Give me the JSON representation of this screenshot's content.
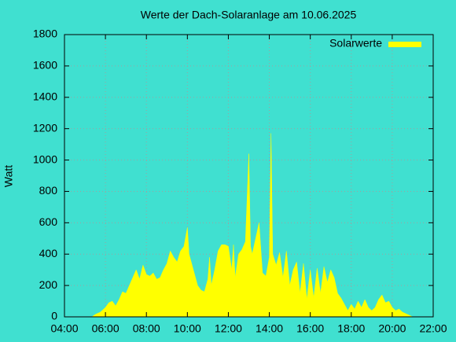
{
  "chart_data": {
    "type": "area",
    "title": "Werte der Dach-Solaranlage am 10.06.2025",
    "y_label": "Watt",
    "x": [
      "05:20",
      "05:30",
      "05:45",
      "06:00",
      "06:10",
      "06:20",
      "06:30",
      "06:40",
      "06:50",
      "07:00",
      "07:10",
      "07:20",
      "07:30",
      "07:40",
      "07:50",
      "08:00",
      "08:10",
      "08:20",
      "08:30",
      "08:40",
      "08:50",
      "09:00",
      "09:10",
      "09:20",
      "09:30",
      "09:40",
      "09:50",
      "10:00",
      "10:05",
      "10:10",
      "10:20",
      "10:30",
      "10:40",
      "10:50",
      "11:00",
      "11:05",
      "11:10",
      "11:20",
      "11:30",
      "11:40",
      "11:50",
      "12:00",
      "12:10",
      "12:15",
      "12:20",
      "12:30",
      "12:40",
      "12:50",
      "13:00",
      "13:05",
      "13:10",
      "13:20",
      "13:30",
      "13:40",
      "13:50",
      "14:00",
      "14:05",
      "14:10",
      "14:20",
      "14:30",
      "14:40",
      "14:50",
      "15:00",
      "15:10",
      "15:20",
      "15:30",
      "15:40",
      "15:50",
      "16:00",
      "16:10",
      "16:20",
      "16:30",
      "16:40",
      "16:50",
      "17:00",
      "17:10",
      "17:20",
      "17:30",
      "17:40",
      "17:50",
      "18:00",
      "18:10",
      "18:20",
      "18:30",
      "18:40",
      "18:50",
      "19:00",
      "19:10",
      "19:20",
      "19:30",
      "19:40",
      "19:50",
      "20:00",
      "20:10",
      "20:20",
      "20:30",
      "20:40",
      "20:50",
      "21:00"
    ],
    "series": [
      {
        "name": "Solarwerte",
        "color": "#ffff00",
        "values": [
          0,
          15,
          30,
          60,
          90,
          100,
          70,
          110,
          160,
          150,
          200,
          250,
          300,
          240,
          330,
          270,
          260,
          280,
          240,
          250,
          300,
          340,
          420,
          380,
          350,
          420,
          450,
          570,
          400,
          360,
          280,
          200,
          170,
          160,
          240,
          380,
          200,
          300,
          420,
          460,
          460,
          450,
          300,
          460,
          250,
          400,
          430,
          480,
          1040,
          450,
          400,
          500,
          600,
          280,
          260,
          380,
          1170,
          400,
          330,
          410,
          250,
          420,
          200,
          300,
          350,
          150,
          340,
          110,
          300,
          120,
          310,
          150,
          320,
          220,
          300,
          250,
          150,
          120,
          80,
          40,
          80,
          50,
          100,
          60,
          110,
          60,
          40,
          60,
          110,
          140,
          90,
          100,
          60,
          40,
          50,
          30,
          20,
          10,
          0
        ]
      }
    ],
    "xlim": [
      "04:00",
      "22:00"
    ],
    "xticks": [
      "04:00",
      "06:00",
      "08:00",
      "10:00",
      "12:00",
      "14:00",
      "16:00",
      "18:00",
      "20:00",
      "22:00"
    ],
    "ylim": [
      0,
      1800
    ],
    "yticks": [
      0,
      200,
      400,
      600,
      800,
      1000,
      1200,
      1400,
      1600,
      1800
    ],
    "grid": true,
    "legend": "top-right"
  }
}
